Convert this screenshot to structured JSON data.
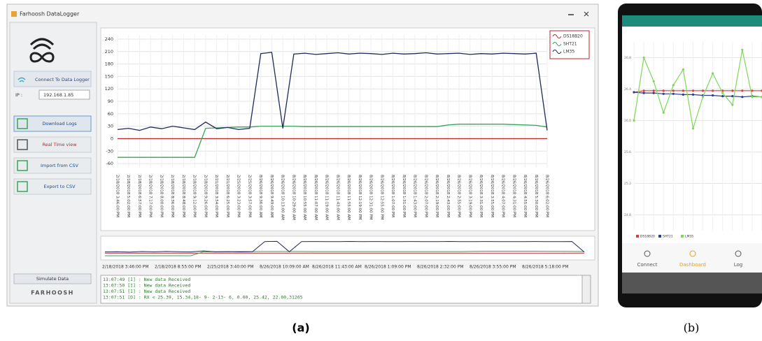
{
  "window": {
    "title": "Farhoosh DataLogger"
  },
  "sidebar": {
    "connect": "Connect To Data Logger",
    "ip_label": "IP :",
    "ip_value": "192.168.1.85",
    "buttons": [
      "Download Logs",
      "Real Time view",
      "Import from CSV",
      "Export to CSV"
    ],
    "simulate": "Simulate Data",
    "brand": "FARHOOSH"
  },
  "log": [
    "13:07:49 [I] : New data Received",
    "13:07:50 [I] : New data Received",
    "13:07:51 [I] : New data Received",
    "13:07:51 [D] : RX <  25.39, 15.34,18- 9- 2-13- 6,  0.00, 25.42, 22.00,31265"
  ],
  "phone": {
    "nav": [
      "Connect",
      "Dashboard",
      "Log"
    ]
  },
  "captions": [
    "(a)",
    "(b)"
  ],
  "chart_data": [
    {
      "type": "line",
      "categories": [
        "2/18/2018 3:46:00 PM",
        "2/18/2018 5:02:00 PM",
        "2/18/2018 6:57:00 PM",
        "2/18/2018 7:17:00 PM",
        "2/18/2018 8:00:00 PM",
        "2/18/2018 8:36:00 PM",
        "2/18/2018 8:48:00 PM",
        "2/18/2018 9:12:00 PM",
        "2/18/2018 9:26:00 PM",
        "2/21/2018 3:54:00 PM",
        "2/21/2018 6:25:00 PM",
        "2/25/2018 3:23:00 PM",
        "2/25/2018 3:57:00 PM",
        "8/26/2018 9:36:00 AM",
        "8/26/2018 9:49:00 AM",
        "8/26/2018 10:13:00 AM",
        "8/26/2018 10:29:00 AM",
        "8/26/2018 10:55:00 AM",
        "8/26/2018 11:07:00 AM",
        "8/26/2018 11:19:00 AM",
        "8/26/2018 11:43:00 AM",
        "8/26/2018 11:55:00 AM",
        "8/26/2018 12:19:00 PM",
        "8/26/2018 12:31:00 PM",
        "8/26/2018 12:55:00 PM",
        "8/26/2018 1:07:00 PM",
        "8/26/2018 1:31:00 PM",
        "8/26/2018 1:43:00 PM",
        "8/26/2018 2:07:00 PM",
        "8/26/2018 2:19:00 PM",
        "8/26/2018 2:43:00 PM",
        "8/26/2018 2:55:00 PM",
        "8/26/2018 3:19:00 PM",
        "8/26/2018 3:31:00 PM",
        "8/26/2018 3:55:00 PM",
        "8/26/2018 4:07:00 PM",
        "8/26/2018 4:31:00 PM",
        "8/26/2018 4:55:00 PM",
        "8/26/2018 5:30:00 PM",
        "8/26/2018 6:02:00 PM"
      ],
      "series": [
        {
          "name": "DS18B20",
          "color": "#c0272d",
          "values": [
            0,
            0,
            0,
            0,
            0,
            0,
            0,
            0,
            0,
            0,
            0,
            0,
            0,
            0,
            0,
            0,
            0,
            0,
            0,
            0,
            0,
            0,
            0,
            0,
            0,
            0,
            0,
            0,
            0,
            0,
            0,
            0,
            0,
            0,
            0,
            0,
            0,
            0,
            0,
            0
          ]
        },
        {
          "name": "SHT21",
          "color": "#3aa35a",
          "values": [
            -45,
            -45,
            -45,
            -45,
            -45,
            -45,
            -45,
            -45,
            25,
            26,
            27,
            28,
            28,
            30,
            30,
            30,
            30,
            29,
            29,
            29,
            29,
            29,
            29,
            29,
            29,
            29,
            29,
            29,
            29,
            29,
            33,
            35,
            35,
            35,
            35,
            35,
            34,
            33,
            32,
            28
          ]
        },
        {
          "name": "LM35",
          "color": "#1f2a5c",
          "values": [
            22,
            25,
            20,
            28,
            24,
            30,
            26,
            22,
            40,
            24,
            27,
            22,
            25,
            205,
            208,
            25,
            204,
            206,
            203,
            205,
            207,
            204,
            206,
            205,
            203,
            206,
            204,
            205,
            207,
            204,
            205,
            206,
            203,
            205,
            204,
            206,
            205,
            204,
            206,
            20
          ]
        }
      ],
      "ylim": [
        -70,
        250
      ],
      "yticks": [
        -60,
        -30,
        0,
        30,
        60,
        90,
        120,
        150,
        180,
        210,
        240
      ],
      "grid": true,
      "legend": "top-right",
      "navigator_labels": [
        "2/18/2018 3:46:00 PM",
        "2/18/2018 8:55:00 PM",
        "2/25/2018 3:40:00 PM",
        "8/26/2018 10:09:00 AM",
        "8/26/2018 11:43:00 AM",
        "8/26/2018 1:09:00 PM",
        "8/26/2018 2:32:00 PM",
        "8/26/2018 3:55:00 PM",
        "8/26/2018 5:18:00 PM"
      ]
    },
    {
      "type": "line",
      "categories": [
        null,
        null,
        null,
        null,
        null,
        null,
        null,
        null,
        null,
        null,
        null,
        null,
        null,
        null
      ],
      "series": [
        {
          "name": "DS18B20",
          "color": "#e03a3a",
          "values": [
            26.36,
            26.38,
            26.38,
            26.38,
            26.38,
            26.38,
            26.38,
            26.38,
            26.38,
            26.38,
            26.38,
            26.38,
            26.38,
            26.38
          ]
        },
        {
          "name": "SHT21",
          "color": "#2c3e8c",
          "values": [
            26.36,
            26.35,
            26.35,
            26.34,
            26.34,
            26.33,
            26.33,
            26.32,
            26.32,
            26.31,
            26.31,
            26.3,
            26.31,
            26.3
          ]
        },
        {
          "name": "LM35",
          "color": "#7ed957",
          "values": [
            26.0,
            26.8,
            26.5,
            26.1,
            26.45,
            26.65,
            25.9,
            26.3,
            26.6,
            26.35,
            26.2,
            26.9,
            26.3,
            26.3
          ]
        }
      ],
      "ylim": [
        24.6,
        27.0
      ],
      "yticks": [
        24.8,
        25.2,
        25.6,
        {
          "value": 26,
          "label": "26.0"
        },
        26.4,
        26.8
      ],
      "grid": true,
      "legend": "bottom-left"
    }
  ]
}
